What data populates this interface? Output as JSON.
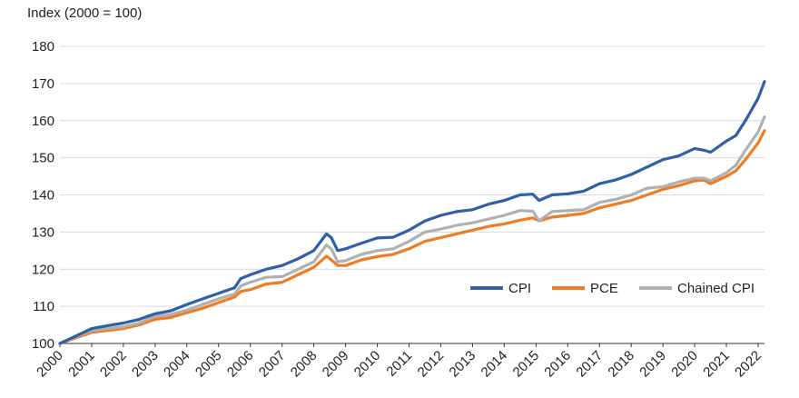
{
  "chart_data": {
    "type": "line",
    "title": "",
    "ylabel": "Index (2000 = 100)",
    "xlabel": "",
    "ylim": [
      100,
      180
    ],
    "yticks": [
      100,
      110,
      120,
      130,
      140,
      150,
      160,
      170,
      180
    ],
    "xticks": [
      "2000",
      "2001",
      "2002",
      "2003",
      "2004",
      "2005",
      "2006",
      "2007",
      "2008",
      "2009",
      "2010",
      "2011",
      "2012",
      "2013",
      "2014",
      "2015",
      "2016",
      "2017",
      "2018",
      "2019",
      "2020",
      "2021",
      "2022"
    ],
    "grid": "horizontal",
    "legend": "bottom-right",
    "x": [
      2000.0,
      2000.5,
      2001.0,
      2001.5,
      2002.0,
      2002.5,
      2003.0,
      2003.5,
      2004.0,
      2004.5,
      2005.0,
      2005.5,
      2005.7,
      2006.0,
      2006.5,
      2007.0,
      2007.5,
      2008.0,
      2008.4,
      2008.55,
      2008.75,
      2009.0,
      2009.5,
      2010.0,
      2010.5,
      2011.0,
      2011.5,
      2012.0,
      2012.5,
      2013.0,
      2013.5,
      2014.0,
      2014.5,
      2014.9,
      2015.1,
      2015.5,
      2016.0,
      2016.5,
      2017.0,
      2017.5,
      2018.0,
      2018.5,
      2019.0,
      2019.5,
      2020.0,
      2020.3,
      2020.5,
      2021.0,
      2021.3,
      2021.6,
      2022.0,
      2022.2
    ],
    "series": [
      {
        "name": "CPI",
        "color": "#2e5fa8",
        "values": [
          100.0,
          102.0,
          104.0,
          104.8,
          105.5,
          106.5,
          108.0,
          108.8,
          110.5,
          112.0,
          113.5,
          115.0,
          117.5,
          118.5,
          120.0,
          121.0,
          122.8,
          125.0,
          129.5,
          128.5,
          125.0,
          125.5,
          127.0,
          128.4,
          128.6,
          130.5,
          133.0,
          134.5,
          135.5,
          136.0,
          137.5,
          138.5,
          140.0,
          140.2,
          138.5,
          140.0,
          140.3,
          141.0,
          143.0,
          144.0,
          145.5,
          147.5,
          149.5,
          150.5,
          152.5,
          152.0,
          151.5,
          154.5,
          156.0,
          160.0,
          166.0,
          170.5
        ]
      },
      {
        "name": "PCE",
        "color": "#ef7b23",
        "values": [
          100.0,
          101.5,
          103.0,
          103.5,
          104.0,
          105.0,
          106.5,
          107.0,
          108.3,
          109.5,
          111.0,
          112.5,
          114.0,
          114.5,
          116.0,
          116.5,
          118.5,
          120.5,
          123.5,
          122.5,
          121.0,
          121.0,
          122.5,
          123.4,
          124.0,
          125.5,
          127.5,
          128.5,
          129.5,
          130.5,
          131.5,
          132.2,
          133.2,
          133.8,
          133.0,
          134.0,
          134.5,
          135.0,
          136.5,
          137.5,
          138.5,
          140.0,
          141.5,
          142.5,
          143.8,
          144.0,
          143.0,
          145.0,
          146.5,
          149.5,
          154.0,
          157.3
        ]
      },
      {
        "name": "Chained CPI",
        "color": "#b0b0b0",
        "values": [
          100.0,
          101.8,
          103.5,
          104.0,
          104.5,
          105.5,
          107.3,
          107.8,
          109.0,
          110.5,
          112.0,
          113.3,
          115.5,
          116.5,
          117.8,
          118.0,
          120.0,
          122.0,
          126.5,
          125.5,
          122.0,
          122.3,
          124.0,
          125.0,
          125.5,
          127.5,
          130.0,
          130.8,
          131.8,
          132.5,
          133.5,
          134.5,
          135.8,
          135.6,
          133.0,
          135.5,
          135.8,
          136.0,
          138.0,
          138.8,
          140.0,
          141.8,
          142.2,
          143.5,
          144.5,
          144.5,
          143.8,
          146.0,
          148.0,
          152.0,
          157.0,
          161.0
        ]
      }
    ]
  }
}
